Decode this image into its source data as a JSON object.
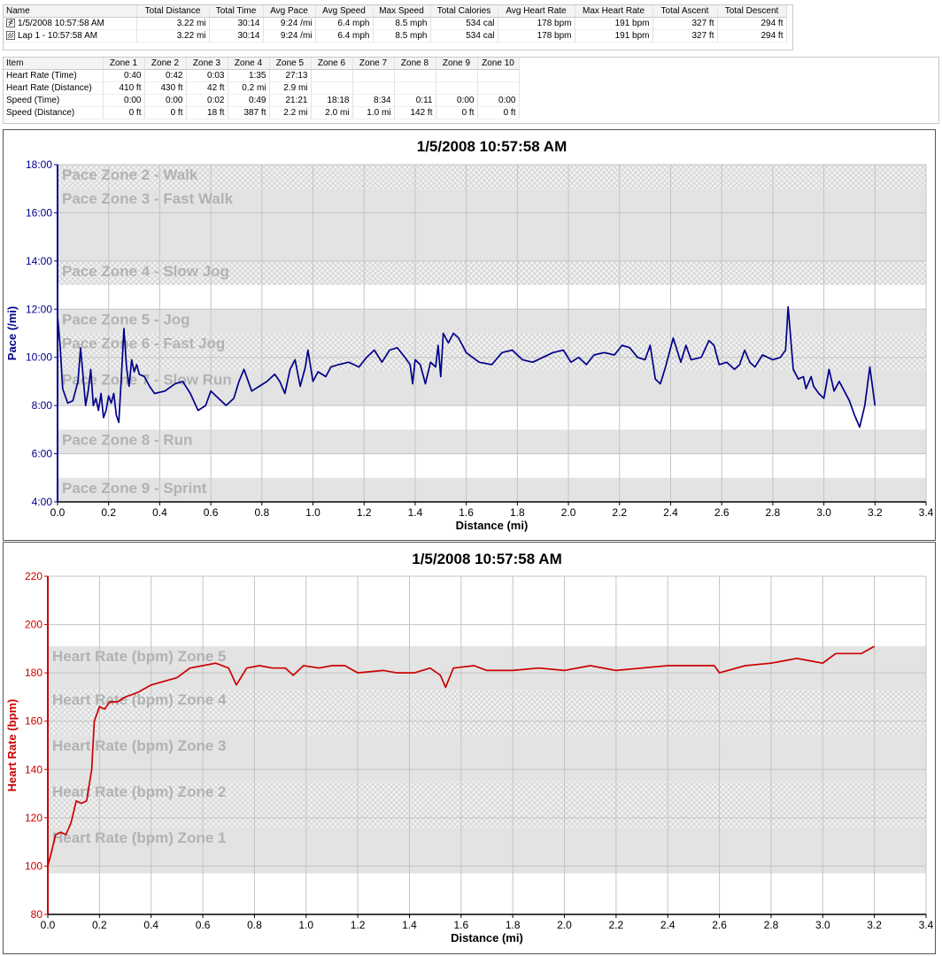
{
  "summary": {
    "columns": [
      "Name",
      "Total Distance",
      "Total Time",
      "Avg Pace",
      "Avg Speed",
      "Max Speed",
      "Total Calories",
      "Avg Heart Rate",
      "Max Heart Rate",
      "Total Ascent",
      "Total Descent"
    ],
    "rows": [
      {
        "icon": "run-icon",
        "cells": [
          "1/5/2008 10:57:58 AM",
          "3.22 mi",
          "30:14",
          "9:24 /mi",
          "6.4 mph",
          "8.5 mph",
          "534 cal",
          "178 bpm",
          "191 bpm",
          "327 ft",
          "294 ft"
        ]
      },
      {
        "icon": "lap-icon",
        "cells": [
          "Lap 1 - 10:57:58 AM",
          "3.22 mi",
          "30:14",
          "9:24 /mi",
          "6.4 mph",
          "8.5 mph",
          "534 cal",
          "178 bpm",
          "191 bpm",
          "327 ft",
          "294 ft"
        ]
      }
    ]
  },
  "zones": {
    "columns": [
      "Item",
      "Zone 1",
      "Zone 2",
      "Zone 3",
      "Zone 4",
      "Zone 5",
      "Zone 6",
      "Zone 7",
      "Zone 8",
      "Zone 9",
      "Zone 10"
    ],
    "rows": [
      [
        "Heart Rate (Time)",
        "0:40",
        "0:42",
        "0:03",
        "1:35",
        "27:13",
        "",
        "",
        "",
        "",
        ""
      ],
      [
        "Heart Rate (Distance)",
        "410 ft",
        "430 ft",
        "42 ft",
        "0.2 mi",
        "2.9 mi",
        "",
        "",
        "",
        "",
        ""
      ],
      [
        "Speed (Time)",
        "0:00",
        "0:00",
        "0:02",
        "0:49",
        "21:21",
        "18:18",
        "8:34",
        "0:11",
        "0:00",
        "0:00"
      ],
      [
        "Speed (Distance)",
        "0 ft",
        "0 ft",
        "18 ft",
        "387 ft",
        "2.2 mi",
        "2.0 mi",
        "1.0 mi",
        "142 ft",
        "0 ft",
        "0 ft"
      ]
    ]
  },
  "chart_data": [
    {
      "type": "line",
      "title": "1/5/2008 10:57:58 AM",
      "xlabel": "Distance (mi)",
      "ylabel": "Pace (/mi)",
      "color": "#00008b",
      "xlim": [
        0,
        3.4
      ],
      "xticks": [
        "0.0",
        "0.2",
        "0.4",
        "0.6",
        "0.8",
        "1.0",
        "1.2",
        "1.4",
        "1.6",
        "1.8",
        "2.0",
        "2.2",
        "2.4",
        "2.6",
        "2.8",
        "3.0",
        "3.2",
        "3.4"
      ],
      "ylim": [
        4,
        18
      ],
      "yticks": [
        "4:00",
        "6:00",
        "8:00",
        "10:00",
        "12:00",
        "14:00",
        "16:00",
        "18:00"
      ],
      "grid": true,
      "zones": [
        {
          "label": "Pace Zone 2 - Walk",
          "from": 17,
          "to": 18,
          "style": "hatch"
        },
        {
          "label": "Pace Zone 3 - Fast Walk",
          "from": 14,
          "to": 17,
          "style": "gray"
        },
        {
          "label": "Pace Zone 4 - Slow Jog",
          "from": 13,
          "to": 14,
          "style": "hatch"
        },
        {
          "label": "Pace Zone 5 - Jog",
          "from": 11,
          "to": 12,
          "style": "gray"
        },
        {
          "label": "Pace Zone 6 - Fast Jog",
          "from": 9.5,
          "to": 11,
          "style": "hatch"
        },
        {
          "label": "Pace Zone 7 - Slow Run",
          "from": 8,
          "to": 9.5,
          "style": "gray"
        },
        {
          "label": "Pace Zone 8 - Run",
          "from": 6,
          "to": 7,
          "style": "gray"
        },
        {
          "label": "Pace Zone 9 - Sprint",
          "from": 4,
          "to": 5,
          "style": "gray"
        }
      ],
      "series": [
        {
          "values": [
            [
              0,
              11.7
            ],
            [
              0.01,
              10.5
            ],
            [
              0.02,
              8.7
            ],
            [
              0.04,
              8.1
            ],
            [
              0.06,
              8.2
            ],
            [
              0.08,
              9.0
            ],
            [
              0.09,
              10.4
            ],
            [
              0.1,
              9.2
            ],
            [
              0.11,
              8.0
            ],
            [
              0.12,
              8.6
            ],
            [
              0.13,
              9.5
            ],
            [
              0.14,
              8.0
            ],
            [
              0.15,
              8.3
            ],
            [
              0.16,
              7.8
            ],
            [
              0.17,
              8.5
            ],
            [
              0.18,
              7.5
            ],
            [
              0.19,
              7.8
            ],
            [
              0.2,
              8.4
            ],
            [
              0.21,
              8.1
            ],
            [
              0.22,
              8.5
            ],
            [
              0.23,
              7.6
            ],
            [
              0.24,
              7.3
            ],
            [
              0.25,
              9.2
            ],
            [
              0.26,
              11.2
            ],
            [
              0.27,
              9.6
            ],
            [
              0.28,
              8.8
            ],
            [
              0.29,
              9.9
            ],
            [
              0.3,
              9.4
            ],
            [
              0.31,
              9.7
            ],
            [
              0.32,
              9.3
            ],
            [
              0.34,
              9.2
            ],
            [
              0.36,
              8.8
            ],
            [
              0.38,
              8.5
            ],
            [
              0.42,
              8.6
            ],
            [
              0.46,
              8.9
            ],
            [
              0.49,
              9.0
            ],
            [
              0.52,
              8.5
            ],
            [
              0.55,
              7.8
            ],
            [
              0.58,
              8.0
            ],
            [
              0.6,
              8.6
            ],
            [
              0.62,
              8.4
            ],
            [
              0.66,
              8.0
            ],
            [
              0.69,
              8.3
            ],
            [
              0.71,
              9.0
            ],
            [
              0.73,
              9.5
            ],
            [
              0.76,
              8.6
            ],
            [
              0.79,
              8.8
            ],
            [
              0.82,
              9.0
            ],
            [
              0.85,
              9.3
            ],
            [
              0.87,
              9.0
            ],
            [
              0.89,
              8.5
            ],
            [
              0.91,
              9.5
            ],
            [
              0.93,
              9.9
            ],
            [
              0.95,
              8.8
            ],
            [
              0.97,
              9.6
            ],
            [
              0.98,
              10.3
            ],
            [
              1.0,
              9.0
            ],
            [
              1.02,
              9.4
            ],
            [
              1.05,
              9.2
            ],
            [
              1.07,
              9.6
            ],
            [
              1.1,
              9.7
            ],
            [
              1.14,
              9.8
            ],
            [
              1.18,
              9.6
            ],
            [
              1.21,
              10.0
            ],
            [
              1.24,
              10.3
            ],
            [
              1.27,
              9.8
            ],
            [
              1.3,
              10.3
            ],
            [
              1.33,
              10.4
            ],
            [
              1.36,
              10.0
            ],
            [
              1.38,
              9.7
            ],
            [
              1.39,
              8.9
            ],
            [
              1.4,
              9.9
            ],
            [
              1.42,
              9.7
            ],
            [
              1.44,
              8.9
            ],
            [
              1.46,
              9.8
            ],
            [
              1.48,
              9.6
            ],
            [
              1.49,
              10.5
            ],
            [
              1.5,
              9.2
            ],
            [
              1.51,
              11.0
            ],
            [
              1.53,
              10.6
            ],
            [
              1.55,
              11.0
            ],
            [
              1.57,
              10.8
            ],
            [
              1.6,
              10.2
            ],
            [
              1.65,
              9.8
            ],
            [
              1.7,
              9.7
            ],
            [
              1.74,
              10.2
            ],
            [
              1.78,
              10.3
            ],
            [
              1.82,
              9.9
            ],
            [
              1.86,
              9.8
            ],
            [
              1.9,
              10.0
            ],
            [
              1.94,
              10.2
            ],
            [
              1.98,
              10.3
            ],
            [
              2.01,
              9.8
            ],
            [
              2.04,
              10.0
            ],
            [
              2.07,
              9.7
            ],
            [
              2.1,
              10.1
            ],
            [
              2.14,
              10.2
            ],
            [
              2.18,
              10.1
            ],
            [
              2.21,
              10.5
            ],
            [
              2.24,
              10.4
            ],
            [
              2.27,
              10.0
            ],
            [
              2.3,
              9.9
            ],
            [
              2.32,
              10.5
            ],
            [
              2.34,
              9.1
            ],
            [
              2.36,
              8.9
            ],
            [
              2.38,
              9.6
            ],
            [
              2.41,
              10.8
            ],
            [
              2.44,
              9.8
            ],
            [
              2.46,
              10.5
            ],
            [
              2.48,
              9.9
            ],
            [
              2.52,
              10.0
            ],
            [
              2.55,
              10.7
            ],
            [
              2.57,
              10.5
            ],
            [
              2.59,
              9.7
            ],
            [
              2.62,
              9.8
            ],
            [
              2.65,
              9.5
            ],
            [
              2.67,
              9.7
            ],
            [
              2.69,
              10.3
            ],
            [
              2.71,
              9.8
            ],
            [
              2.73,
              9.6
            ],
            [
              2.76,
              10.1
            ],
            [
              2.78,
              10.0
            ],
            [
              2.8,
              9.9
            ],
            [
              2.83,
              10.0
            ],
            [
              2.85,
              10.3
            ],
            [
              2.86,
              12.1
            ],
            [
              2.88,
              9.5
            ],
            [
              2.9,
              9.1
            ],
            [
              2.92,
              9.2
            ],
            [
              2.93,
              8.7
            ],
            [
              2.95,
              9.2
            ],
            [
              2.96,
              8.8
            ],
            [
              2.98,
              8.5
            ],
            [
              3.0,
              8.3
            ],
            [
              3.02,
              9.5
            ],
            [
              3.04,
              8.6
            ],
            [
              3.06,
              9.0
            ],
            [
              3.08,
              8.6
            ],
            [
              3.1,
              8.2
            ],
            [
              3.12,
              7.6
            ],
            [
              3.14,
              7.1
            ],
            [
              3.16,
              8.0
            ],
            [
              3.18,
              9.6
            ],
            [
              3.2,
              8.0
            ]
          ]
        }
      ]
    },
    {
      "type": "line",
      "title": "1/5/2008 10:57:58 AM",
      "xlabel": "Distance (mi)",
      "ylabel": "Heart Rate (bpm)",
      "color": "#cc0000",
      "xlim": [
        0,
        3.4
      ],
      "xticks": [
        "0.0",
        "0.2",
        "0.4",
        "0.6",
        "0.8",
        "1.0",
        "1.2",
        "1.4",
        "1.6",
        "1.8",
        "2.0",
        "2.2",
        "2.4",
        "2.6",
        "2.8",
        "3.0",
        "3.2",
        "3.4"
      ],
      "ylim": [
        80,
        220
      ],
      "yticks": [
        "80",
        "100",
        "120",
        "140",
        "160",
        "180",
        "200",
        "220"
      ],
      "grid": true,
      "zones": [
        {
          "label": "Heart Rate (bpm) Zone 5",
          "from": 173,
          "to": 191,
          "style": "gray"
        },
        {
          "label": "Heart Rate (bpm) Zone 4",
          "from": 154,
          "to": 173,
          "style": "hatch"
        },
        {
          "label": "Heart Rate (bpm) Zone 3",
          "from": 135,
          "to": 154,
          "style": "gray"
        },
        {
          "label": "Heart Rate (bpm) Zone 2",
          "from": 116,
          "to": 135,
          "style": "hatch"
        },
        {
          "label": "Heart Rate (bpm) Zone 1",
          "from": 97,
          "to": 116,
          "style": "gray"
        }
      ],
      "series": [
        {
          "values": [
            [
              0,
              100
            ],
            [
              0.01,
              104
            ],
            [
              0.03,
              113
            ],
            [
              0.05,
              114
            ],
            [
              0.07,
              113
            ],
            [
              0.09,
              118
            ],
            [
              0.11,
              127
            ],
            [
              0.13,
              126
            ],
            [
              0.15,
              127
            ],
            [
              0.17,
              140
            ],
            [
              0.18,
              160
            ],
            [
              0.2,
              166
            ],
            [
              0.22,
              165
            ],
            [
              0.24,
              168
            ],
            [
              0.27,
              168
            ],
            [
              0.3,
              170
            ],
            [
              0.35,
              172
            ],
            [
              0.4,
              175
            ],
            [
              0.5,
              178
            ],
            [
              0.55,
              182
            ],
            [
              0.6,
              183
            ],
            [
              0.65,
              184
            ],
            [
              0.7,
              182
            ],
            [
              0.73,
              175
            ],
            [
              0.77,
              182
            ],
            [
              0.82,
              183
            ],
            [
              0.87,
              182
            ],
            [
              0.92,
              182
            ],
            [
              0.95,
              179
            ],
            [
              0.99,
              183
            ],
            [
              1.05,
              182
            ],
            [
              1.1,
              183
            ],
            [
              1.15,
              183
            ],
            [
              1.2,
              180
            ],
            [
              1.3,
              181
            ],
            [
              1.35,
              180
            ],
            [
              1.42,
              180
            ],
            [
              1.48,
              182
            ],
            [
              1.52,
              179
            ],
            [
              1.54,
              174
            ],
            [
              1.57,
              182
            ],
            [
              1.65,
              183
            ],
            [
              1.7,
              181
            ],
            [
              1.8,
              181
            ],
            [
              1.9,
              182
            ],
            [
              2.0,
              181
            ],
            [
              2.1,
              183
            ],
            [
              2.2,
              181
            ],
            [
              2.3,
              182
            ],
            [
              2.4,
              183
            ],
            [
              2.5,
              183
            ],
            [
              2.58,
              183
            ],
            [
              2.6,
              180
            ],
            [
              2.7,
              183
            ],
            [
              2.8,
              184
            ],
            [
              2.85,
              185
            ],
            [
              2.9,
              186
            ],
            [
              2.95,
              185
            ],
            [
              3.0,
              184
            ],
            [
              3.05,
              188
            ],
            [
              3.1,
              188
            ],
            [
              3.15,
              188
            ],
            [
              3.2,
              191
            ]
          ]
        }
      ]
    }
  ]
}
